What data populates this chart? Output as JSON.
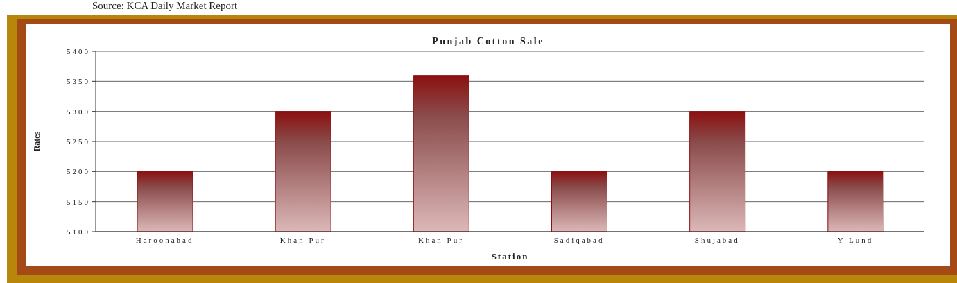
{
  "chart_data": {
    "type": "bar",
    "title": "Punjab Cotton Sale",
    "xlabel": "Station",
    "ylabel": "Rates",
    "annotations": [
      "Source: KCA Daily Market Report"
    ],
    "categories": [
      "Haroonabad",
      "Khan Pur",
      "Khan Pur",
      "Sadiqabad",
      "Shujabad",
      "Y Lund"
    ],
    "values": [
      5200,
      5300,
      5360,
      5200,
      5300,
      5200
    ],
    "color": "#8b1010",
    "ylim": [
      5100,
      5400
    ],
    "yticks": [
      5100,
      5150,
      5200,
      5250,
      5300,
      5350,
      5400
    ],
    "grid": "y"
  }
}
